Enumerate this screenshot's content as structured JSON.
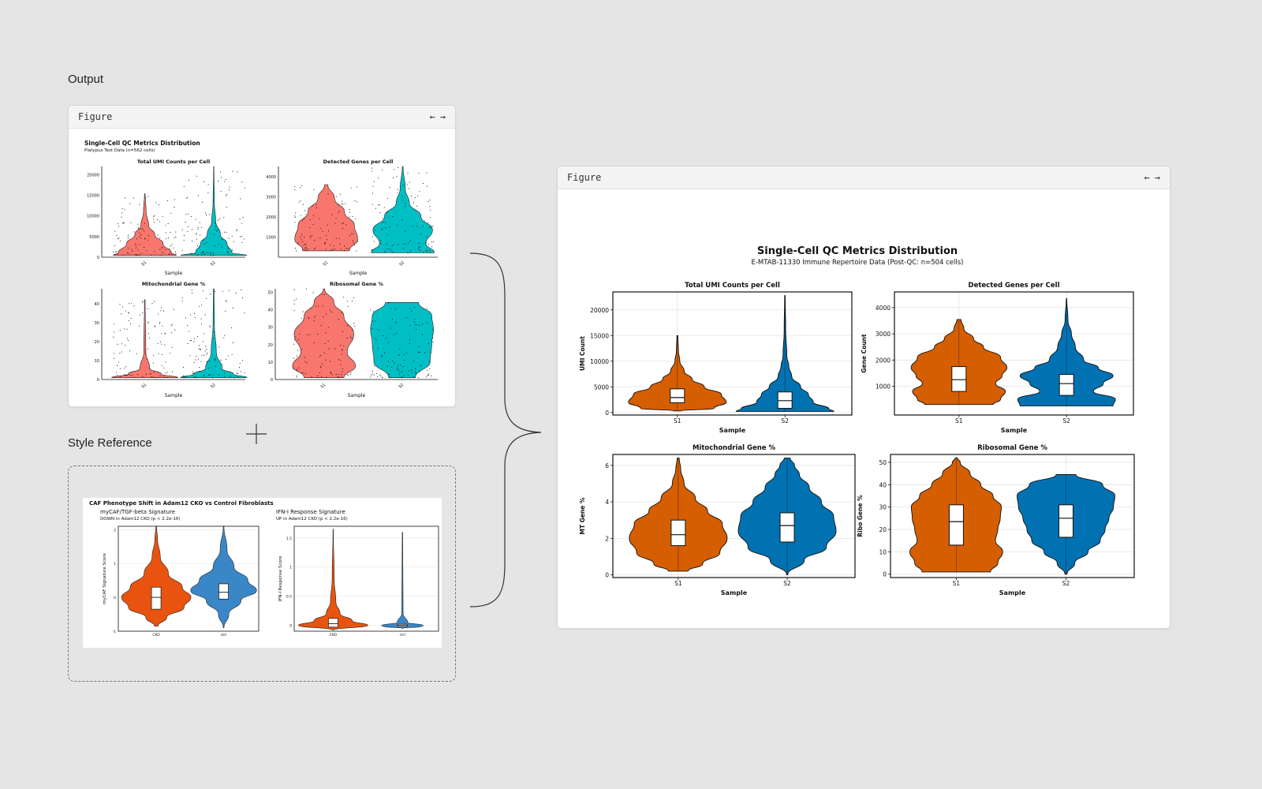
{
  "labels": {
    "output": "Output",
    "style_reference": "Style Reference"
  },
  "figure_panels": {
    "left_title": "Figure",
    "right_title": "Figure",
    "prev_icon": "←",
    "next_icon": "→"
  },
  "colors": {
    "background": "#e5e5e5",
    "salmon": "#f8766d",
    "cyan": "#00bfc4",
    "orange": "#d55e00",
    "blue": "#0072b2",
    "ref_orange": "#e8540f",
    "ref_blue": "#3a87c8"
  },
  "output_figure": {
    "title": "Single-Cell QC Metrics Distribution",
    "subtitle": "Platypus Test Data (n=562 cells)",
    "panels": [
      {
        "title": "Total UMI Counts per Cell",
        "xlabel": "Sample",
        "categories": [
          "S1",
          "S2"
        ],
        "ylim": [
          0,
          22000
        ],
        "yticks": [
          0,
          5000,
          10000,
          15000,
          20000
        ]
      },
      {
        "title": "Detected Genes per Cell",
        "xlabel": "Sample",
        "categories": [
          "S1",
          "S2"
        ],
        "ylim": [
          0,
          4500
        ],
        "yticks": [
          1000,
          2000,
          3000,
          4000
        ]
      },
      {
        "title": "Mitochondrial Gene %",
        "xlabel": "Sample",
        "categories": [
          "S1",
          "S2"
        ],
        "ylim": [
          0,
          48
        ],
        "yticks": [
          0,
          10,
          20,
          30,
          40
        ]
      },
      {
        "title": "Ribosomal Gene %",
        "xlabel": "Sample",
        "categories": [
          "S1",
          "S2"
        ],
        "ylim": [
          0,
          52
        ],
        "yticks": [
          0,
          10,
          20,
          30,
          40,
          50
        ]
      }
    ]
  },
  "style_reference": {
    "title": "CAF Phenotype Shift in Adam12 CKO vs Control Fibroblasts",
    "panels": [
      {
        "title": "myCAF/TGF-beta Signature",
        "subtitle": "DOWN in Adam12 CKO (p < 2.2e-16)",
        "ylabel": "myCAF Signature Score",
        "categories": [
          "CKO",
          "ctrl"
        ],
        "ylim": [
          -1,
          2.1
        ],
        "yticks": [
          -1,
          0,
          1,
          2
        ]
      },
      {
        "title": "IFN-I Response Signature",
        "subtitle": "UP in Adam12 CKO (p < 2.2e-16)",
        "ylabel": "IFN-I Response Score",
        "categories": [
          "CKO",
          "ctrl"
        ],
        "ylim": [
          -0.1,
          1.7
        ],
        "yticks": [
          0.0,
          0.5,
          1.0,
          1.5
        ]
      }
    ]
  },
  "chart_data": [
    {
      "type": "violin",
      "title": "Total UMI Counts per Cell",
      "xlabel": "Sample",
      "ylabel": "UMI Count",
      "categories": [
        "S1",
        "S2"
      ],
      "ylim": [
        -500,
        23500
      ],
      "yticks": [
        0,
        5000,
        10000,
        15000,
        20000
      ],
      "series": [
        {
          "name": "S1",
          "min": 300,
          "max": 15000,
          "q1": 1900,
          "median": 2900,
          "q3": 4600,
          "profile": [
            [
              300,
              0.08
            ],
            [
              800,
              0.75
            ],
            [
              2000,
              1.0
            ],
            [
              3500,
              0.9
            ],
            [
              5000,
              0.55
            ],
            [
              6500,
              0.3
            ],
            [
              8000,
              0.14
            ],
            [
              10000,
              0.05
            ],
            [
              12000,
              0.02
            ],
            [
              15000,
              0.01
            ]
          ]
        },
        {
          "name": "S2",
          "min": 200,
          "max": 22800,
          "q1": 800,
          "median": 2300,
          "q3": 4000,
          "profile": [
            [
              200,
              1.0
            ],
            [
              700,
              0.9
            ],
            [
              2000,
              0.58
            ],
            [
              3500,
              0.48
            ],
            [
              5000,
              0.32
            ],
            [
              7000,
              0.14
            ],
            [
              9000,
              0.08
            ],
            [
              11000,
              0.04
            ],
            [
              16000,
              0.015
            ],
            [
              22800,
              0.005
            ]
          ]
        }
      ]
    },
    {
      "type": "violin",
      "title": "Detected Genes per Cell",
      "xlabel": "Sample",
      "ylabel": "Gene Count",
      "categories": [
        "S1",
        "S2"
      ],
      "ylim": [
        -100,
        4600
      ],
      "yticks": [
        1000,
        2000,
        3000,
        4000
      ],
      "series": [
        {
          "name": "S1",
          "min": 300,
          "max": 3550,
          "q1": 800,
          "median": 1250,
          "q3": 1750,
          "profile": [
            [
              300,
              0.7
            ],
            [
              500,
              0.85
            ],
            [
              800,
              0.95
            ],
            [
              1100,
              0.75
            ],
            [
              1400,
              0.88
            ],
            [
              1700,
              0.98
            ],
            [
              2100,
              0.85
            ],
            [
              2500,
              0.5
            ],
            [
              2800,
              0.3
            ],
            [
              3200,
              0.1
            ],
            [
              3550,
              0.04
            ]
          ]
        },
        {
          "name": "S2",
          "min": 250,
          "max": 4350,
          "q1": 650,
          "median": 1100,
          "q3": 1450,
          "profile": [
            [
              250,
              0.95
            ],
            [
              500,
              1.0
            ],
            [
              800,
              0.55
            ],
            [
              1100,
              0.75
            ],
            [
              1400,
              0.95
            ],
            [
              1700,
              0.65
            ],
            [
              2000,
              0.35
            ],
            [
              2500,
              0.18
            ],
            [
              3000,
              0.1
            ],
            [
              3500,
              0.03
            ],
            [
              4350,
              0.005
            ]
          ]
        }
      ]
    },
    {
      "type": "violin",
      "title": "Mitochondrial Gene %",
      "xlabel": "Sample",
      "ylabel": "MT Gene %",
      "categories": [
        "S1",
        "S2"
      ],
      "ylim": [
        -0.15,
        6.6
      ],
      "yticks": [
        0,
        2,
        4,
        6
      ],
      "series": [
        {
          "name": "S1",
          "min": 0.2,
          "max": 6.4,
          "q1": 1.6,
          "median": 2.2,
          "q3": 3.0,
          "profile": [
            [
              0.2,
              0.2
            ],
            [
              0.6,
              0.5
            ],
            [
              1.2,
              0.85
            ],
            [
              2.0,
              1.0
            ],
            [
              2.8,
              0.9
            ],
            [
              3.5,
              0.6
            ],
            [
              4.2,
              0.35
            ],
            [
              5.0,
              0.12
            ],
            [
              5.8,
              0.05
            ],
            [
              6.4,
              0.02
            ]
          ]
        },
        {
          "name": "S2",
          "min": 0.0,
          "max": 6.4,
          "q1": 1.8,
          "median": 2.7,
          "q3": 3.4,
          "profile": [
            [
              0.0,
              0.01
            ],
            [
              0.8,
              0.35
            ],
            [
              1.5,
              0.8
            ],
            [
              2.4,
              1.0
            ],
            [
              3.2,
              0.95
            ],
            [
              4.0,
              0.7
            ],
            [
              4.8,
              0.45
            ],
            [
              5.5,
              0.25
            ],
            [
              6.0,
              0.15
            ],
            [
              6.4,
              0.06
            ]
          ]
        }
      ]
    },
    {
      "type": "violin",
      "title": "Ribosomal Gene %",
      "xlabel": "Sample",
      "ylabel": "Ribo Gene %",
      "categories": [
        "S1",
        "S2"
      ],
      "ylim": [
        -1.5,
        53.5
      ],
      "yticks": [
        0,
        10,
        20,
        30,
        40,
        50
      ],
      "series": [
        {
          "name": "S1",
          "min": 1,
          "max": 52,
          "q1": 13,
          "median": 23.5,
          "q3": 31,
          "profile": [
            [
              1,
              0.7
            ],
            [
              5,
              0.85
            ],
            [
              10,
              0.95
            ],
            [
              15,
              0.8
            ],
            [
              20,
              0.85
            ],
            [
              25,
              0.9
            ],
            [
              30,
              0.92
            ],
            [
              35,
              0.75
            ],
            [
              40,
              0.5
            ],
            [
              45,
              0.28
            ],
            [
              50,
              0.08
            ],
            [
              52,
              0.02
            ]
          ]
        },
        {
          "name": "S2",
          "min": 0,
          "max": 44.5,
          "q1": 16.5,
          "median": 25,
          "q3": 31,
          "profile": [
            [
              0,
              0.02
            ],
            [
              5,
              0.18
            ],
            [
              10,
              0.45
            ],
            [
              15,
              0.7
            ],
            [
              20,
              0.8
            ],
            [
              25,
              0.88
            ],
            [
              30,
              0.97
            ],
            [
              35,
              1.0
            ],
            [
              40,
              0.75
            ],
            [
              44.5,
              0.2
            ]
          ]
        }
      ]
    }
  ],
  "right_figure": {
    "title": "Single-Cell QC Metrics Distribution",
    "subtitle": "E-MTAB-11330 Immune Repertoire Data (Post-QC: n=504 cells)"
  }
}
